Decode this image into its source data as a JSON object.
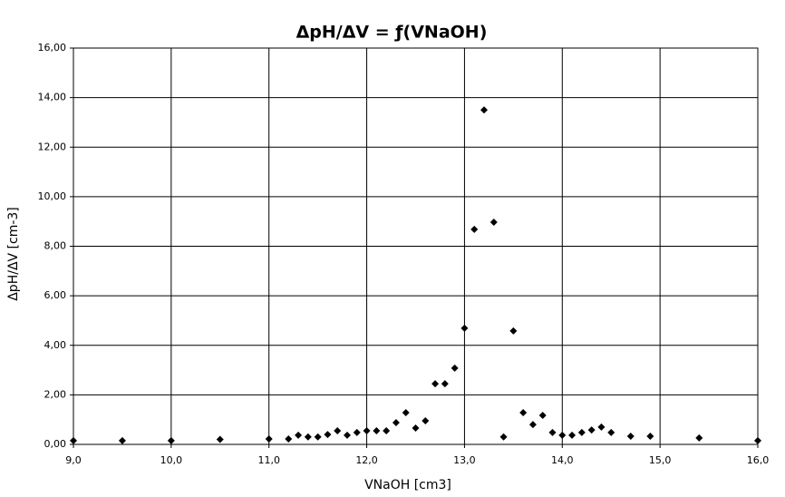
{
  "chart_data": {
    "type": "scatter",
    "title": "ΔpH/ΔV = ƒ(VNaOH)",
    "x_label": "VNaOH [cm3]",
    "y_label": "ΔpH/ΔV [cm-3]",
    "color": "#000000",
    "marker": "diamond",
    "grid": true,
    "xlim": [
      9,
      16
    ],
    "ylim": [
      0,
      16
    ],
    "xticks": [
      {
        "value": 9,
        "label": "9,0"
      },
      {
        "value": 10,
        "label": "10,0"
      },
      {
        "value": 11,
        "label": "11,0"
      },
      {
        "value": 12,
        "label": "12,0"
      },
      {
        "value": 13,
        "label": "13,0"
      },
      {
        "value": 14,
        "label": "14,0"
      },
      {
        "value": 15,
        "label": "15,0"
      },
      {
        "value": 16,
        "label": "16,0"
      }
    ],
    "yticks": [
      {
        "value": 0,
        "label": "0,00"
      },
      {
        "value": 2,
        "label": "2,00"
      },
      {
        "value": 4,
        "label": "4,00"
      },
      {
        "value": 6,
        "label": "6,00"
      },
      {
        "value": 8,
        "label": "8,00"
      },
      {
        "value": 10,
        "label": "10,00"
      },
      {
        "value": 12,
        "label": "12,00"
      },
      {
        "value": 14,
        "label": "14,00"
      },
      {
        "value": 16,
        "label": "16,00"
      }
    ],
    "x": [
      9.0,
      9.5,
      10.0,
      10.5,
      11.0,
      11.2,
      11.3,
      11.4,
      11.5,
      11.6,
      11.7,
      11.8,
      11.9,
      12.0,
      12.1,
      12.2,
      12.3,
      12.4,
      12.5,
      12.6,
      12.7,
      12.8,
      12.9,
      13.0,
      13.1,
      13.2,
      13.3,
      13.4,
      13.5,
      13.6,
      13.7,
      13.8,
      13.9,
      14.0,
      14.1,
      14.2,
      14.3,
      14.4,
      14.5,
      14.7,
      14.9,
      15.4,
      16.0
    ],
    "values": [
      0.15,
      0.15,
      0.15,
      0.2,
      0.22,
      0.22,
      0.37,
      0.3,
      0.3,
      0.4,
      0.55,
      0.37,
      0.48,
      0.55,
      0.55,
      0.55,
      0.88,
      1.28,
      0.66,
      0.95,
      2.45,
      2.45,
      3.08,
      4.69,
      8.68,
      13.5,
      8.97,
      0.3,
      4.58,
      1.28,
      0.8,
      1.17,
      0.48,
      0.37,
      0.37,
      0.48,
      0.58,
      0.7,
      0.48,
      0.33,
      0.33,
      0.26,
      0.15
    ]
  }
}
